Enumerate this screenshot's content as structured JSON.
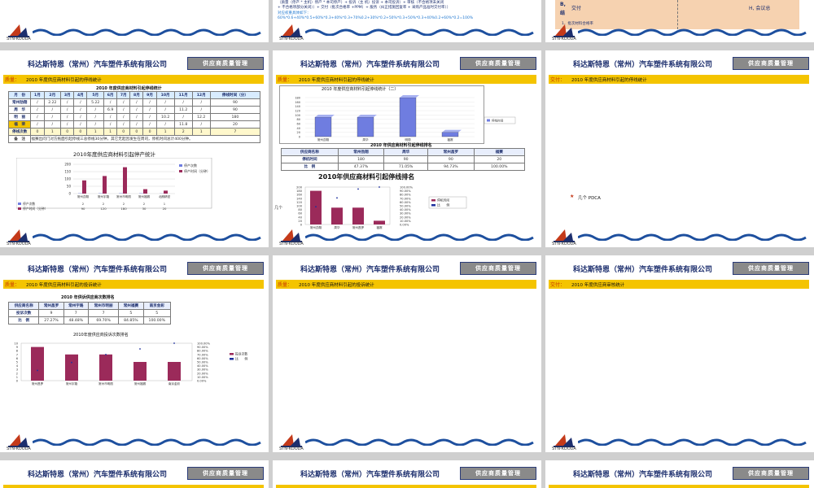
{
  "company": "科达斯特恩（常州）汽车塑件系统有限公司",
  "dept": "供应商质量管理",
  "logo_text": "STN-KOODA",
  "top": {
    "s1_line1": "（质量（停产 * 主机）停产 * 本司停产）+ 投诉（主 机）投诉 + 本司投诉）+ 审核（不合格项未关闭",
    "s1_line2": "+ 不合格项部分关闭））+ 交付（批次合格率 +PPM）+ 服务（纠正措施回复率 + 采购产品准时交付率））",
    "s1_line3": "对应权重具体如下：",
    "s1_line4": "60%*0.6+40%*0.5+60%*0.3+40%*0.3+70%0.2+30%*0.2+50%*0.3+50%*0.3+40%0.2+60%*0.2=100%",
    "s3_b": "B,",
    "s3_jiao": "交付",
    "s3_jie": "结",
    "s3_h": "H, 会议总",
    "s3_item": "1．批次材料合格率"
  },
  "tags": {
    "quality": "质量：",
    "delivery": "交付："
  },
  "slides": {
    "p1": {
      "title": "2010 年度供应商材料引起的停线统计",
      "table_caption": "2010 年度供应商材料引起停线统计",
      "header": [
        "月　份",
        "1月",
        "2月",
        "3月",
        "4月",
        "5月",
        "6月",
        "7月",
        "8月",
        "9月",
        "10月",
        "11月",
        "12月",
        "停线时间（分）"
      ],
      "rows": [
        [
          "常州劲翔",
          "/",
          "2.22",
          "/",
          "/",
          "5.22",
          "/",
          "/",
          "/",
          "/",
          "/",
          "/",
          "/",
          "90"
        ],
        [
          "周　华",
          "/",
          "/",
          "/",
          "/",
          "/",
          "6.9",
          "/",
          "/",
          "/",
          "/",
          "11.2",
          "/",
          "90"
        ],
        [
          "明　丽",
          "/",
          "/",
          "/",
          "/",
          "/",
          "/",
          "/",
          "/",
          "/",
          "10.2",
          "/",
          "12.2",
          "180"
        ],
        [
          "福　荣",
          "/",
          "/",
          "/",
          "/",
          "/",
          "/",
          "/",
          "/",
          "/",
          "/",
          "11.8",
          "/",
          "20"
        ],
        [
          "停线次数",
          "0",
          "1",
          "0",
          "0",
          "1",
          "1",
          "0",
          "0",
          "0",
          "1",
          "2",
          "1",
          "7"
        ]
      ],
      "note_label": "备　注",
      "note": "福赛出问门对方拖面引起停线三总停线30分钟，其它无起因发生在周司，停机时间总计400分钟。",
      "chart_title": "2010年度供应商材料引起停产统计",
      "legend": [
        "停产次数",
        "停产时间（分钟）"
      ],
      "row_labels": [
        "停产次数",
        "停产时间（分钟）"
      ]
    },
    "p2": {
      "title": "2010 年度供应商材料引起的停线统计",
      "chart_title": "2010 年度供应商材料引起停线统计（二）",
      "legend1": "停线时间",
      "table_caption": "2010 年供应商材料引起停线排名",
      "table": [
        [
          "供应商名称",
          "常州劲翔",
          "周华",
          "常州昌罗",
          "福赛"
        ],
        [
          "停机时间",
          "180",
          "90",
          "90",
          "20"
        ],
        [
          "比　例",
          "47.37%",
          "71.05%",
          "94.73%",
          "100.00%"
        ]
      ],
      "chart2_title": "2010年供应商材料引起停线排名",
      "chart2_legend": [
        "停机时间",
        "比　　例"
      ],
      "side": "几个"
    },
    "p3": {
      "title": "2010 年度供应商材料引起的停线统计",
      "pdca": "几个 PDCA"
    },
    "p4": {
      "title": "2010 年度供应商材料引起的投诉统计",
      "table_caption": "2010 年供诉供应商次数排名",
      "table": [
        [
          "供应商名称",
          "常州昌罗",
          "常州宇路",
          "常州市明丽",
          "常州福赛",
          "南京金彩"
        ],
        [
          "投诉次数",
          "9",
          "7",
          "7",
          "5",
          "5"
        ],
        [
          "比　例",
          "27.27%",
          "48.48%",
          "69.70%",
          "84.85%",
          "100.00%"
        ]
      ],
      "chart_title": "2010年度供应商投诉次数排名",
      "legend": [
        "投诉次数",
        "比　　例"
      ]
    },
    "p5": {
      "title": "2010 年度供应商材料引起的投诉统计"
    },
    "p6": {
      "title": "2010 年度供应商审核统计"
    }
  },
  "chart_data": [
    {
      "type": "bar",
      "title": "2010年度供应商材料引起停产统计",
      "categories": [
        "常州劲翔",
        "常州宇路",
        "常州市明丽",
        "常州福赛",
        "北朗精密"
      ],
      "series": [
        {
          "name": "停产次数",
          "values": [
            2,
            2,
            2,
            2,
            1
          ]
        },
        {
          "name": "停产时间（分钟）",
          "values": [
            90,
            120,
            180,
            30,
            20
          ]
        }
      ],
      "ylim": [
        0,
        200
      ]
    },
    {
      "type": "bar",
      "title": "2010 年度供应商材料引起停线统计（二）",
      "categories": [
        "常州劲翔",
        "周华",
        "明丽",
        "福赛"
      ],
      "series": [
        {
          "name": "停线时间",
          "values": [
            90,
            90,
            180,
            20
          ]
        }
      ],
      "ylim": [
        0,
        180
      ]
    },
    {
      "type": "bar",
      "title": "2010年供应商材料引起停线排名",
      "categories": [
        "常州劲翔",
        "周华",
        "常州昌罗",
        "福赛"
      ],
      "series": [
        {
          "name": "停机时间",
          "values": [
            180,
            90,
            90,
            20
          ]
        },
        {
          "name": "比　　例",
          "values": [
            47.37,
            71.05,
            94.73,
            100.0
          ]
        }
      ],
      "ylim": [
        0,
        200
      ],
      "y2lim": [
        0,
        100
      ]
    },
    {
      "type": "bar",
      "title": "2010年度供应商投诉次数排名",
      "categories": [
        "常州昌罗",
        "常州宇路",
        "常州市明丽",
        "常州福赛",
        "南京金彩"
      ],
      "series": [
        {
          "name": "投诉次数",
          "values": [
            9,
            7,
            7,
            5,
            5
          ]
        },
        {
          "name": "比　　例",
          "values": [
            27.27,
            48.48,
            69.7,
            84.85,
            100.0
          ]
        }
      ],
      "ylim": [
        0,
        10
      ],
      "y2lim": [
        0,
        100
      ]
    }
  ],
  "colors": {
    "yellow": "#f4c400",
    "navy": "#1d2f6e",
    "bar": "#9b2a5a",
    "barblue": "#6f7de0"
  }
}
